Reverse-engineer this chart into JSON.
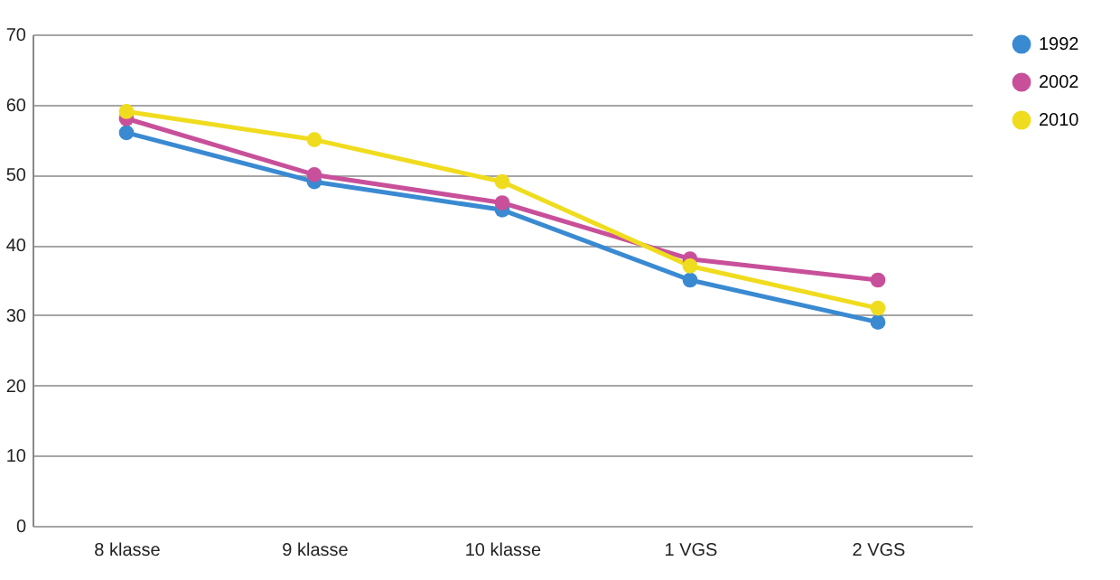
{
  "chart_data": {
    "type": "line",
    "categories": [
      "8 klasse",
      "9 klasse",
      "10 klasse",
      "1 VGS",
      "2 VGS"
    ],
    "series": [
      {
        "name": "1992",
        "color": "#3a8ad2",
        "values": [
          56,
          49,
          45,
          35,
          29
        ]
      },
      {
        "name": "2002",
        "color": "#c8509a",
        "values": [
          58,
          50,
          46,
          38,
          35
        ]
      },
      {
        "name": "2010",
        "color": "#f0dc1e",
        "values": [
          59,
          55,
          49,
          37,
          31
        ]
      }
    ],
    "ylim": [
      0,
      70
    ],
    "yticks": [
      0,
      10,
      20,
      30,
      40,
      50,
      60,
      70
    ],
    "grid": "y",
    "legend": "right",
    "marker": "circle"
  }
}
